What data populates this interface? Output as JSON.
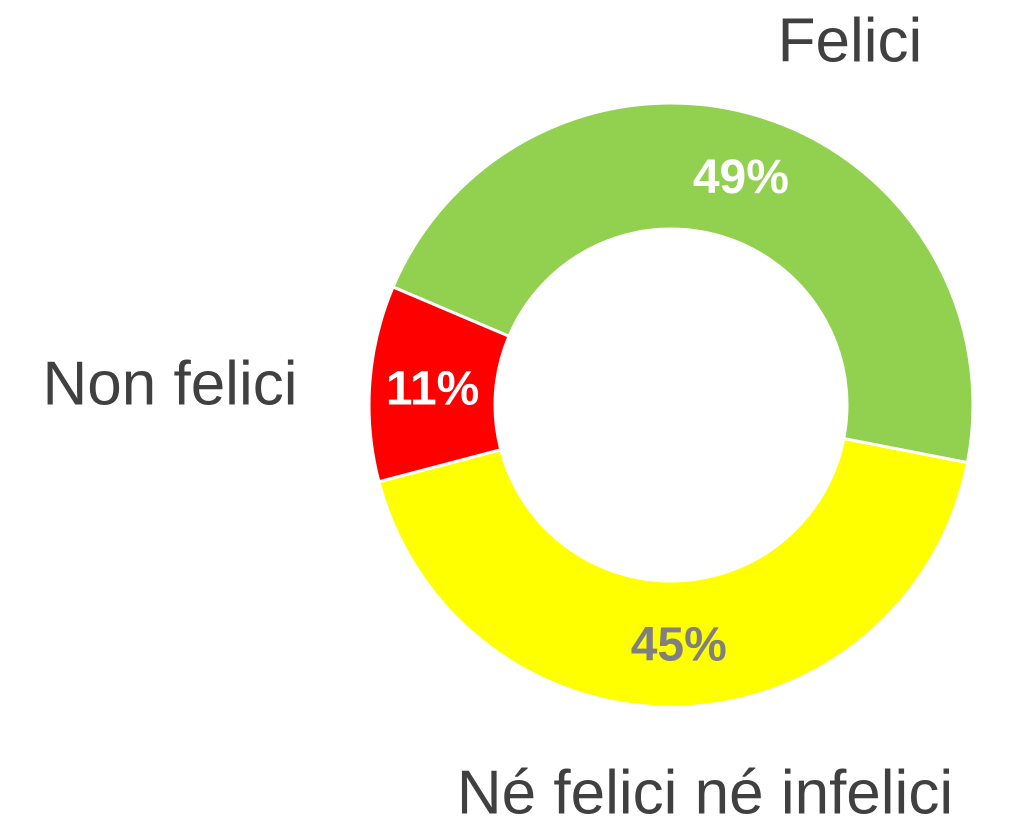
{
  "chart_data": {
    "type": "donut",
    "categories": [
      "Felici",
      "Né felici né infelici",
      "Non felici"
    ],
    "values": [
      49,
      45,
      11
    ],
    "value_labels": [
      "49%",
      "45%",
      "11%"
    ],
    "colors": [
      "#92d050",
      "#ffff00",
      "#ff0000"
    ],
    "value_label_colors": [
      "#ffffff",
      "#808080",
      "#ffffff"
    ]
  }
}
